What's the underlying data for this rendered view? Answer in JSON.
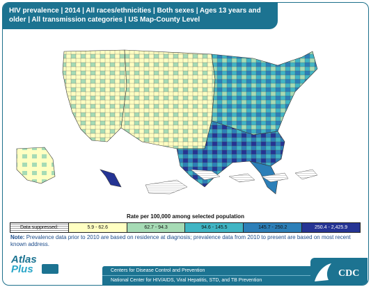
{
  "header": {
    "title": "HIV prevalence | 2014 | All races/ethnicities | Both sexes | Ages 13 years and older | All transmission categories | US Map-County Level"
  },
  "legend": {
    "title": "Rate per 100,000 among selected population",
    "items": [
      {
        "label": "Data suppressed:",
        "color": "#ffffff"
      },
      {
        "label": "5.9 - 62.6",
        "color": "#ffffc2"
      },
      {
        "label": "62.7 - 94.3",
        "color": "#a6dbb5"
      },
      {
        "label": "94.6 - 145.5",
        "color": "#40b5c4"
      },
      {
        "label": "145.7 - 250.2",
        "color": "#2c7fb8"
      },
      {
        "label": "250.4 - 2,425.9",
        "color": "#253494"
      }
    ]
  },
  "note": {
    "prefix": "Note:",
    "text": "Prevalence data prior to 2010 are based on residence at diagnosis; prevalence data from 2010 to present are based  on most recent known address."
  },
  "branding": {
    "atlas_line1": "Atlas",
    "atlas_line2": "Plus",
    "footer_line1": "Centers for Disease Control and Prevention",
    "footer_line2": "National Center for HIV/AIDS, Viral Hepatitis, STD, and TB Prevention",
    "logo_text": "CDC"
  }
}
